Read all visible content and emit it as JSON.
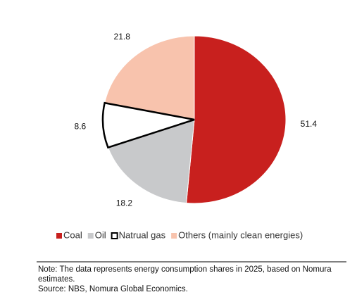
{
  "chart_data": {
    "type": "pie",
    "categories": [
      "Coal",
      "Oil",
      "Natrual gas",
      "Others (mainly clean energies)"
    ],
    "values": [
      51.4,
      18.2,
      8.6,
      21.8
    ],
    "colors": [
      "#c8201e",
      "#c8c9cb",
      "#ffffff",
      "#f8c3ad"
    ],
    "notes": [
      "Note: The data represents energy consumption shares in 2025, based on Nomura",
      "estimates.",
      "Source: NBS, Nomura Global Economics."
    ]
  }
}
